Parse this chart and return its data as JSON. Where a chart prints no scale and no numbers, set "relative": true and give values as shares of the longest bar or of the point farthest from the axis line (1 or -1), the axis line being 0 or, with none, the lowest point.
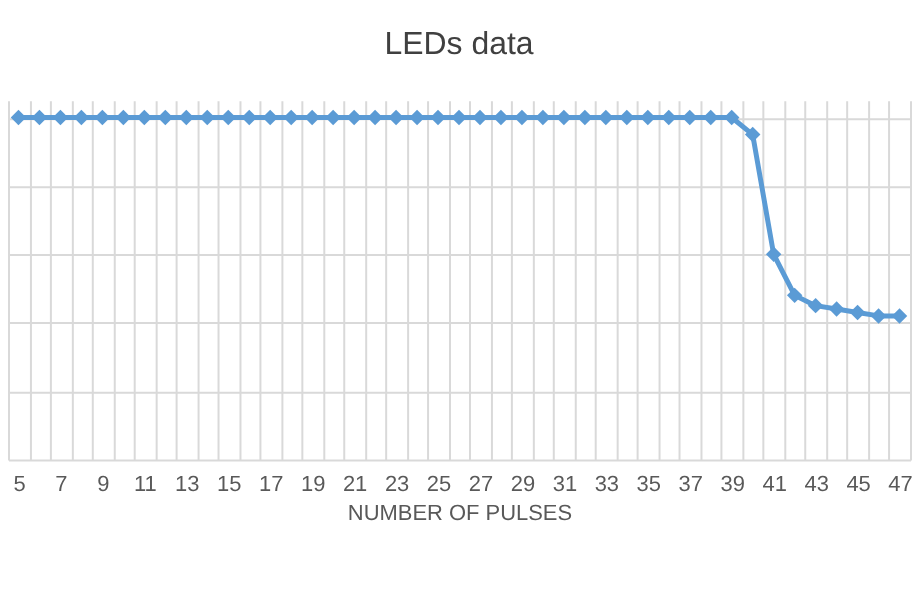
{
  "chart_data": {
    "type": "line",
    "title": "LEDs data",
    "xlabel": "NUMBER OF PULSES",
    "categories": [
      "5",
      null,
      "7",
      null,
      "9",
      null,
      "11",
      null,
      "13",
      null,
      "15",
      null,
      "17",
      null,
      "19",
      null,
      "21",
      null,
      "23",
      null,
      "25",
      null,
      "27",
      null,
      "29",
      null,
      "31",
      null,
      "33",
      null,
      "35",
      null,
      "37",
      null,
      "39",
      null,
      "41",
      null,
      "43",
      null,
      "45",
      null,
      "47"
    ],
    "series": [
      {
        "color": "#5b9bd5",
        "values": [
          1,
          1,
          1,
          1,
          1,
          1,
          1,
          1,
          1,
          1,
          1,
          1,
          1,
          1,
          1,
          1,
          1,
          1,
          1,
          1,
          1,
          1,
          1,
          1,
          1,
          1,
          1,
          1,
          1,
          1,
          1,
          1,
          1,
          1,
          1,
          0.95,
          0.6,
          0.48,
          0.45,
          0.44,
          0.43,
          0.42,
          0.42
        ]
      }
    ],
    "relative": true,
    "grid": true,
    "marker": "diamond",
    "line_style": "solid"
  }
}
